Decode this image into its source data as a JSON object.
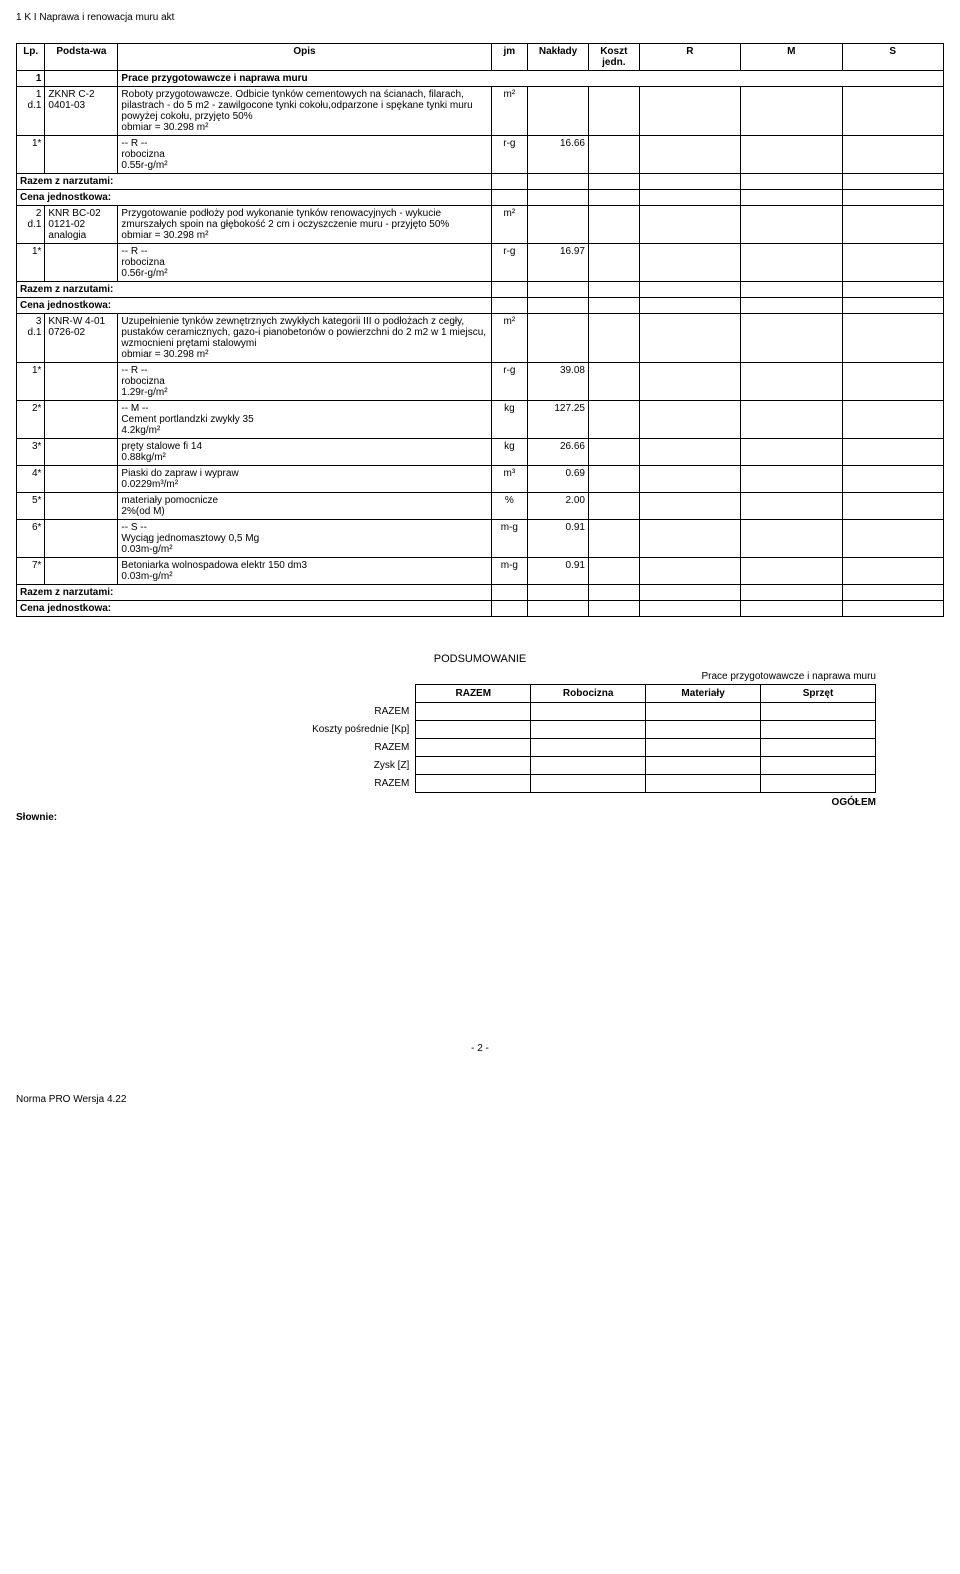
{
  "page_title": "1 K I Naprawa i renowacja muru akt",
  "table": {
    "headers": {
      "lp": "Lp.",
      "podstawa": "Podsta-wa",
      "opis": "Opis",
      "jm": "jm",
      "naklady": "Nakłady",
      "koszt": "Koszt jedn.",
      "r": "R",
      "m": "M",
      "s": "S"
    },
    "section1": {
      "num": "1",
      "title": "Prace przygotowawcze i naprawa muru"
    },
    "r1": {
      "lp": "1 d.1",
      "podst": "ZKNR C-2 0401-03",
      "opis": "Roboty przygotowawcze. Odbicie tynków cementowych na ścianach, filarach, pilastrach - do 5 m2 - zawilgocone tynki cokołu,odparzone i spękane tynki muru powyżej cokołu, przyjęto 50%",
      "obmiar": "obmiar  = 30.298 m²",
      "jm": "m²"
    },
    "r1_R": {
      "lp": "1*",
      "hdr": "-- R --",
      "line": "robocizna",
      "sub": "0.55r-g/m²",
      "jm": "r-g",
      "val": "16.66"
    },
    "razem": "Razem z narzutami:",
    "cena": "Cena jednostkowa:",
    "r2": {
      "lp": "2 d.1",
      "podst": "KNR BC-02 0121-02 analogia",
      "opis": "Przygotowanie podłoży pod wykonanie tynków renowacyjnych - wykucie zmurszałych spoin na głębokość 2 cm i oczyszczenie muru - przyjęto 50%",
      "obmiar": "obmiar  = 30.298 m²",
      "jm": "m²"
    },
    "r2_R": {
      "lp": "1*",
      "hdr": "-- R --",
      "line": "robocizna",
      "sub": "0.56r-g/m²",
      "jm": "r-g",
      "val": "16.97"
    },
    "r3": {
      "lp": "3 d.1",
      "podst": "KNR-W 4-01 0726-02",
      "opis": "Uzupełnienie tynków zewnętrznych zwykłych kategorii III o podłożach z cegły, pustaków ceramicznych, gazo-i pianobetonów o powierzchni do 2 m2 w 1 miejscu, wzmocnieni prętami stalowymi",
      "obmiar": "obmiar  = 30.298 m²",
      "jm": "m²"
    },
    "r3_R": {
      "lp": "1*",
      "hdr": "-- R --",
      "line": "robocizna",
      "sub": "1.29r-g/m²",
      "jm": "r-g",
      "val": "39.08"
    },
    "r3_M": {
      "hdr": "-- M --",
      "items": [
        {
          "lp": "2*",
          "line": "Cement portlandzki zwykły 35",
          "sub": "4.2kg/m²",
          "jm": "kg",
          "val": "127.25"
        },
        {
          "lp": "3*",
          "line": "pręty stalowe fi 14",
          "sub": "0.88kg/m²",
          "jm": "kg",
          "val": "26.66"
        },
        {
          "lp": "4*",
          "line": "Piaski do zapraw i wypraw",
          "sub": "0.0229m³/m²",
          "jm": "m³",
          "val": "0.69"
        },
        {
          "lp": "5*",
          "line": "materiały pomocnicze",
          "sub": "2%(od M)",
          "jm": "%",
          "val": "2.00"
        }
      ]
    },
    "r3_S": {
      "hdr": "-- S --",
      "items": [
        {
          "lp": "6*",
          "line": "Wyciąg jednomasztowy 0,5 Mg",
          "sub": "0.03m-g/m²",
          "jm": "m-g",
          "val": "0.91"
        },
        {
          "lp": "7*",
          "line": "Betoniarka wolnospadowa elektr 150 dm3",
          "sub": "0.03m-g/m²",
          "jm": "m-g",
          "val": "0.91"
        }
      ]
    }
  },
  "summary": {
    "title": "PODSUMOWANIE",
    "right_label": "Prace przygotowawcze i naprawa muru",
    "cols": {
      "razem": "RAZEM",
      "rob": "Robocizna",
      "mat": "Materiały",
      "spr": "Sprzęt"
    },
    "rows": {
      "razem1": "RAZEM",
      "kp": "Koszty pośrednie [Kp]",
      "razem2": "RAZEM",
      "zysk": "Zysk [Z]",
      "razem3": "RAZEM"
    },
    "ogolem": "OGÓŁEM",
    "slownie": "Słownie:"
  },
  "footer": {
    "page": "- 2 -",
    "norma": "Norma PRO Wersja 4.22"
  }
}
